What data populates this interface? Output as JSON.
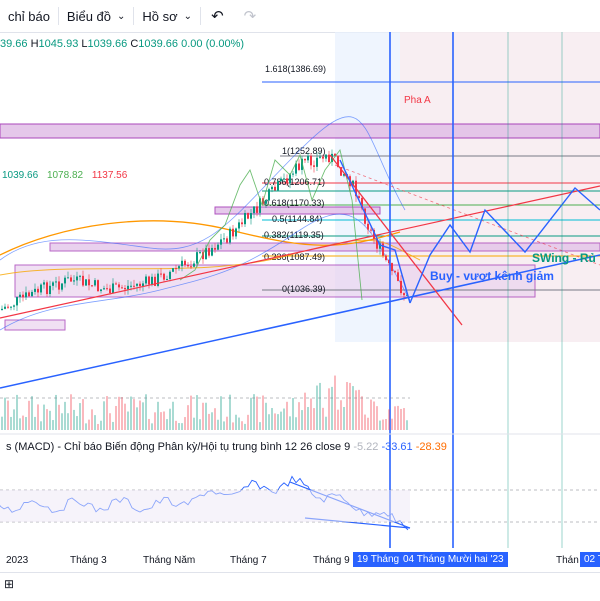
{
  "toolbar": {
    "indicators_label": "chỉ báo",
    "chart_type_label": "Biểu đồ",
    "profile_label": "Hồ sơ",
    "undo_icon": "undo-icon",
    "redo_icon": "redo-icon"
  },
  "ohlc": {
    "open_value": "39.66",
    "high_key": "H",
    "high_value": "1045.93",
    "low_key": "L",
    "low_value": "1039.66",
    "close_key": "C",
    "close_value": "1039.66",
    "change": "0.00 (0.00%)"
  },
  "ma_values": {
    "v1": "1039.66",
    "v2": "1078.82",
    "v3": "1137.56"
  },
  "annotations": {
    "fib_1618": "1.618(1386.69)",
    "fib_1": "1(1252.89)",
    "fib_0786": "0.786(1206.71)",
    "fib_0618": "0.618(1170.33)",
    "fib_05": "0.5(1144.84)",
    "fib_0382": "0.382(1119.35)",
    "fib_0236": "0.236(1087.49)",
    "fib_0": "0(1036.39)",
    "pha_a": "Pha A",
    "buy_text": "Buy - vượt kênh giảm",
    "swing_text": "SWing - Rủ"
  },
  "macd": {
    "label": "s (MACD) - Chỉ báo Biến động Phân kỳ/Hội tụ trung bình 12 26 close 9",
    "value_faded": "-5.22",
    "value1": "-33.61",
    "value2": "-28.39"
  },
  "time_axis": {
    "labels": [
      "2023",
      "Tháng 3",
      "Tháng Năm",
      "Tháng 7",
      "Tháng 9",
      "Thán"
    ],
    "highlight_1": "19 Tháng",
    "highlight_2": "04 Tháng Mười hai '23",
    "highlight_3": "02 T"
  },
  "colors": {
    "up": "#089981",
    "down": "#f23645",
    "accent": "#2962ff",
    "zone_purple": "#9c27b0",
    "buy_text": "#2962ff",
    "swing_text": "#089981"
  }
}
